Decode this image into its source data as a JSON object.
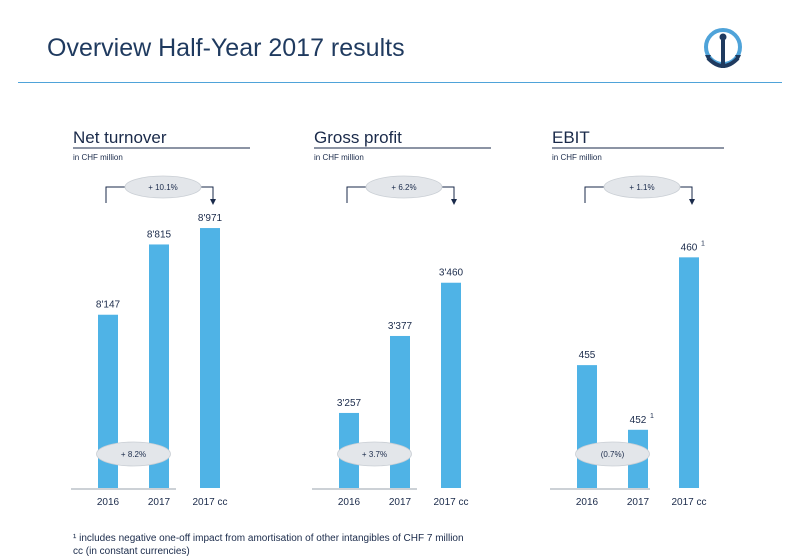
{
  "page": {
    "title": "Overview Half-Year 2017 results"
  },
  "logo": {
    "icon": "anchor-icon",
    "color": "#1f3a5f",
    "accent": "#4fa3d9"
  },
  "colors": {
    "bar": "#4fb3e6",
    "text": "#1a2a4a",
    "rule": "#4fa3d9",
    "pill": "#e3e6ea"
  },
  "chart_data": [
    {
      "type": "bar",
      "title": "Net turnover",
      "subtitle": "in CHF million",
      "categories": [
        "2016",
        "2017",
        "2017 cc"
      ],
      "values": [
        8147,
        8815,
        8971
      ],
      "value_labels": [
        "8'147",
        "8'815",
        "8'971"
      ],
      "value_label_sups": [
        "",
        "",
        ""
      ],
      "ylim": [
        6500,
        9000
      ],
      "top_bracket": "+ 10.1%",
      "bottom_pill": "+ 8.2%",
      "bottom_span": [
        0,
        1
      ]
    },
    {
      "type": "bar",
      "title": "Gross profit",
      "subtitle": "in CHF million",
      "categories": [
        "2016",
        "2017",
        "2017 cc"
      ],
      "values": [
        3257,
        3377,
        3460
      ],
      "value_labels": [
        "3'257",
        "3'377",
        "3'460"
      ],
      "value_label_sups": [
        "",
        "",
        ""
      ],
      "ylim": [
        3140,
        3550
      ],
      "top_bracket": "+ 6.2%",
      "bottom_pill": "+ 3.7%",
      "bottom_span": [
        0,
        1
      ]
    },
    {
      "type": "bar",
      "title": "EBIT",
      "subtitle": "in CHF million",
      "categories": [
        "2016",
        "2017",
        "2017 cc"
      ],
      "values": [
        455,
        452,
        460
      ],
      "value_labels": [
        "455",
        "452",
        "460"
      ],
      "value_label_sups": [
        "",
        "1",
        "1"
      ],
      "ylim": [
        449.3,
        461.5
      ],
      "top_bracket": "+ 1.1%",
      "bottom_pill": "(0.7%)",
      "bottom_span": [
        0,
        1
      ]
    }
  ],
  "footnotes": [
    "¹ includes negative one-off impact from amortisation of other intangibles of CHF 7 million",
    "cc (in constant currencies)"
  ]
}
